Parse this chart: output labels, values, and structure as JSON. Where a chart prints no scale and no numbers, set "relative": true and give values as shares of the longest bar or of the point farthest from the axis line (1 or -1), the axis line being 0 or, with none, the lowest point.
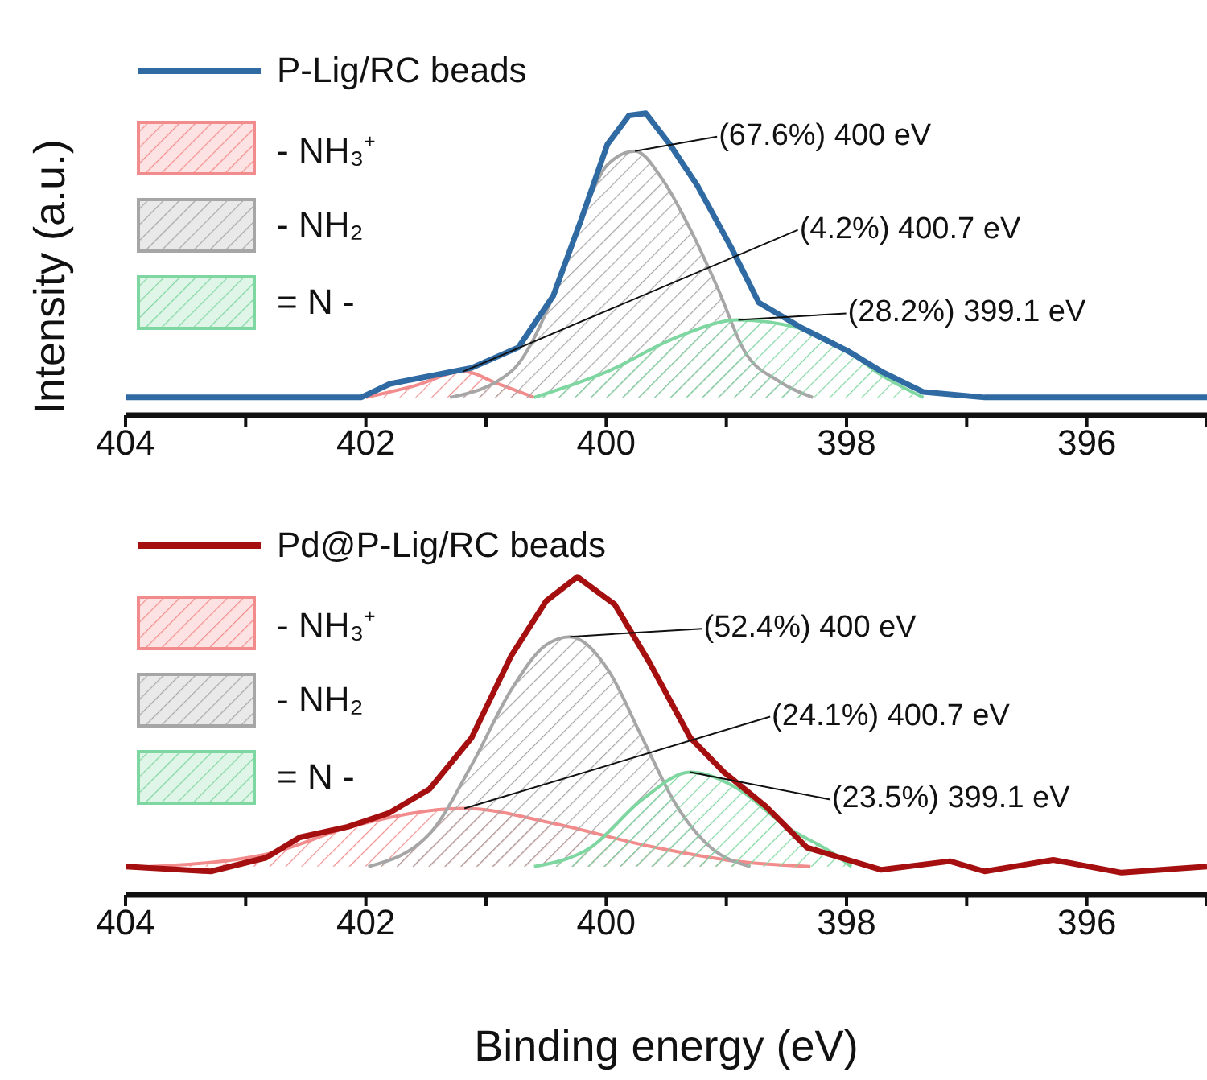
{
  "chart_data": [
    {
      "type": "line",
      "ylabel": "Intensity (a.u.)",
      "relative": true,
      "xlim": [
        404,
        395
      ],
      "xticks": [
        404,
        {
          "value": 403,
          "label": null
        },
        402,
        {
          "value": 401,
          "label": null
        },
        400,
        {
          "value": 399,
          "label": null
        },
        398,
        {
          "value": 397,
          "label": null
        },
        396,
        {
          "value": 395,
          "label": null
        }
      ],
      "tick_labels": "x",
      "legend": "top left",
      "series": [
        {
          "name": "P-Lig/RC beads",
          "type": "line",
          "color": "#2f6aa3",
          "x": [
            404,
            402.04,
            401.8,
            401.12,
            400.73,
            400.44,
            400.21,
            399.99,
            399.81,
            399.67,
            399.47,
            399.24,
            398.96,
            398.73,
            398.39,
            397.99,
            397.71,
            397.36,
            396.85,
            395
          ],
          "values": [
            0.059,
            0.059,
            0.104,
            0.157,
            0.225,
            0.396,
            0.646,
            0.897,
            0.993,
            1.0,
            0.897,
            0.76,
            0.556,
            0.373,
            0.293,
            0.213,
            0.145,
            0.077,
            0.059,
            0.059
          ]
        },
        {
          "name": "- NH₃⁺",
          "type": "area",
          "color": "#f28b8b",
          "x": [
            402.0,
            401.6,
            401.19,
            400.9,
            400.6
          ],
          "values": [
            0.059,
            0.097,
            0.145,
            0.104,
            0.059
          ]
        },
        {
          "name": "- NH₂",
          "type": "area",
          "color": "#a6a6a6",
          "x": [
            401.3,
            400.79,
            400.44,
            400.21,
            399.99,
            399.76,
            399.53,
            399.31,
            399.07,
            398.85,
            398.56,
            398.28
          ],
          "values": [
            0.059,
            0.145,
            0.396,
            0.646,
            0.829,
            0.875,
            0.78,
            0.624,
            0.419,
            0.213,
            0.112,
            0.059
          ]
        },
        {
          "name": "= N -",
          "type": "area",
          "color": "#7ed6a0",
          "x": [
            400.6,
            399.99,
            399.41,
            398.9,
            398.39,
            397.99,
            397.71,
            397.36
          ],
          "values": [
            0.059,
            0.145,
            0.259,
            0.316,
            0.288,
            0.213,
            0.133,
            0.059
          ]
        }
      ],
      "annotations": [
        {
          "text": "(67.6%) 400 eV",
          "x": 399.76,
          "y": 0.875
        },
        {
          "text": "(4.2%) 400.7 eV",
          "x": 401.19,
          "y": 0.145
        },
        {
          "text": "(28.2%) 399.1 eV",
          "x": 398.9,
          "y": 0.316
        }
      ]
    },
    {
      "type": "line",
      "xlabel": "Binding energy (eV)",
      "relative": true,
      "xlim": [
        404,
        395
      ],
      "xticks": [
        404,
        {
          "value": 403,
          "label": null
        },
        402,
        {
          "value": 401,
          "label": null
        },
        400,
        {
          "value": 399,
          "label": null
        },
        398,
        {
          "value": 397,
          "label": null
        },
        396,
        {
          "value": 395,
          "label": null
        }
      ],
      "tick_labels": "x",
      "legend": "top left",
      "series": [
        {
          "name": "Pd@P-Lig/RC beads",
          "type": "line",
          "color": "#a50f0f",
          "x": [
            404,
            403.29,
            402.83,
            402.55,
            402.15,
            401.81,
            401.47,
            401.12,
            400.79,
            400.5,
            400.24,
            399.93,
            399.64,
            399.3,
            399.02,
            398.67,
            398.33,
            398.05,
            397.71,
            397.14,
            396.85,
            396.28,
            395.71,
            395
          ],
          "values": [
            0.089,
            0.074,
            0.117,
            0.181,
            0.214,
            0.257,
            0.333,
            0.494,
            0.752,
            0.924,
            1.0,
            0.914,
            0.731,
            0.494,
            0.386,
            0.278,
            0.149,
            0.117,
            0.079,
            0.106,
            0.074,
            0.11,
            0.07,
            0.089
          ]
        },
        {
          "name": "- NH₃⁺",
          "type": "area",
          "color": "#f28b8b",
          "x": [
            403.8,
            402.83,
            402.09,
            401.18,
            400.43,
            399.64,
            398.9,
            398.3
          ],
          "values": [
            0.089,
            0.128,
            0.218,
            0.272,
            0.224,
            0.153,
            0.105,
            0.089
          ]
        },
        {
          "name": "- NH₂",
          "type": "area",
          "color": "#a6a6a6",
          "x": [
            401.98,
            401.47,
            401.12,
            400.79,
            400.5,
            400.3,
            399.99,
            399.7,
            399.41,
            399.13,
            398.8
          ],
          "values": [
            0.089,
            0.192,
            0.408,
            0.645,
            0.786,
            0.812,
            0.711,
            0.494,
            0.278,
            0.149,
            0.089
          ]
        },
        {
          "name": "= N -",
          "type": "area",
          "color": "#7ed6a0",
          "x": [
            400.6,
            400.13,
            399.7,
            399.3,
            398.9,
            398.5,
            398.1,
            397.96
          ],
          "values": [
            0.089,
            0.149,
            0.3,
            0.386,
            0.333,
            0.214,
            0.128,
            0.089
          ]
        }
      ],
      "annotations": [
        {
          "text": "(52.4%) 400 eV",
          "x": 400.3,
          "y": 0.812
        },
        {
          "text": "(24.1%) 400.7 eV",
          "x": 401.18,
          "y": 0.272
        },
        {
          "text": "(23.5%) 399.1 eV",
          "x": 399.3,
          "y": 0.386
        }
      ]
    }
  ]
}
